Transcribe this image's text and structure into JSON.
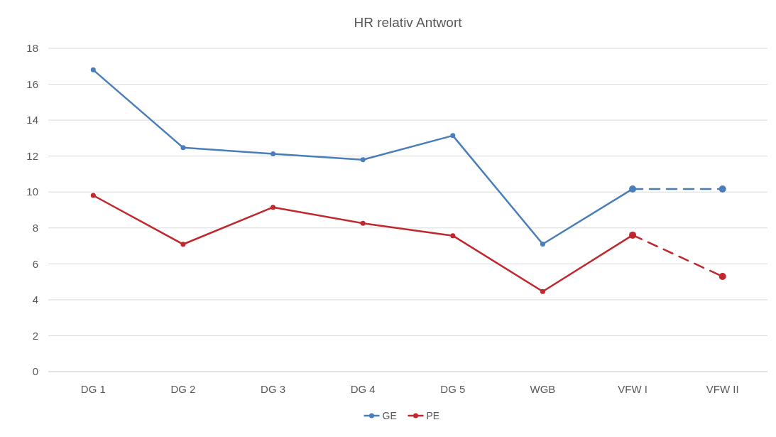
{
  "chart_data": {
    "type": "line",
    "title": "HR relativ Antwort",
    "categories": [
      "DG 1",
      "DG 2",
      "DG 3",
      "DG 4",
      "DG 5",
      "WGB",
      "VFW I",
      "VFW II"
    ],
    "series": [
      {
        "name": "GE",
        "color": "#4a7ebb",
        "values": [
          16.8,
          12.47,
          12.13,
          11.8,
          13.14,
          7.1,
          10.17,
          null
        ]
      },
      {
        "name": "PE",
        "color": "#c0282d",
        "values": [
          9.81,
          7.09,
          9.15,
          8.26,
          7.57,
          4.46,
          7.6,
          null
        ]
      },
      {
        "color": "#4a7ebb",
        "line_style": "dashed",
        "values": [
          null,
          null,
          null,
          null,
          null,
          null,
          10.17,
          10.17
        ]
      },
      {
        "color": "#c0282d",
        "line_style": "dashed",
        "values": [
          null,
          null,
          null,
          null,
          null,
          null,
          7.6,
          5.3
        ]
      }
    ],
    "ylim": [
      0,
      18
    ],
    "yticks": [
      0,
      2,
      4,
      6,
      8,
      10,
      12,
      14,
      16,
      18
    ],
    "grid": "y",
    "legend": "bottom",
    "marker": "circle",
    "line_style": "solid"
  }
}
